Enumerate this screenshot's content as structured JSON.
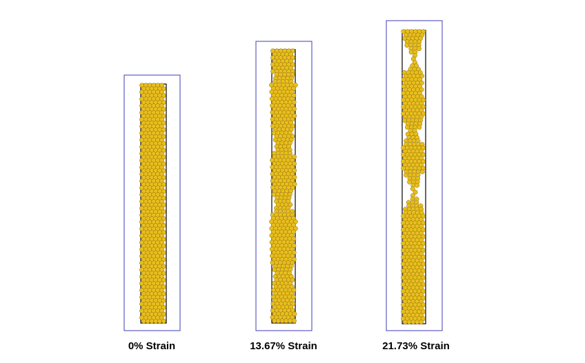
{
  "panels": [
    {
      "id": "strain-0",
      "label": "0% Strain",
      "strain_percent": 0,
      "necks": 0
    },
    {
      "id": "strain-13",
      "label": "13.67% Strain",
      "strain_percent": 13.67,
      "necks": 3
    },
    {
      "id": "strain-21",
      "label": "21.73% Strain",
      "strain_percent": 21.73,
      "necks": 3
    }
  ],
  "colors": {
    "atom_fill": "#e8be1e",
    "atom_stroke": "#8a6a08",
    "bounding_box": "#3b3bb8",
    "cell_outline": "#000000",
    "background": "#ffffff"
  }
}
